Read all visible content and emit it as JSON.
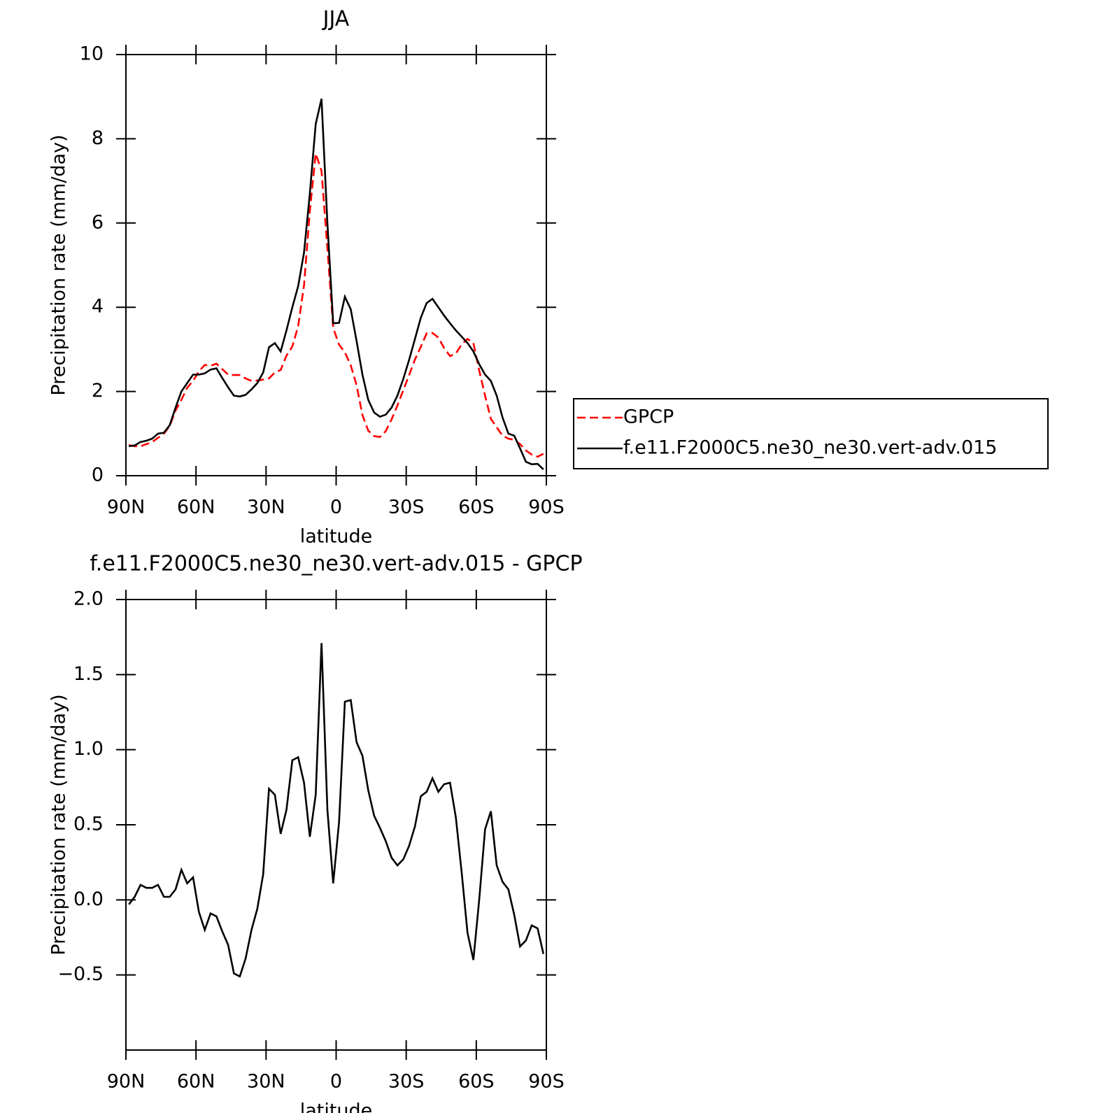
{
  "chart_data": [
    {
      "type": "line",
      "title": "JJA",
      "xlabel": "latitude",
      "ylabel": "Precipitation rate (mm/day)",
      "x": [
        88.75,
        86.25,
        83.75,
        81.25,
        78.75,
        76.25,
        73.75,
        71.25,
        68.75,
        66.25,
        63.75,
        61.25,
        58.75,
        56.25,
        53.75,
        51.25,
        48.75,
        46.25,
        43.75,
        41.25,
        38.75,
        36.25,
        33.75,
        31.25,
        28.75,
        26.25,
        23.75,
        21.25,
        18.75,
        16.25,
        13.75,
        11.25,
        8.75,
        6.25,
        3.75,
        1.25,
        -1.25,
        -3.75,
        -6.25,
        -8.75,
        -11.25,
        -13.75,
        -16.25,
        -18.75,
        -21.25,
        -23.75,
        -26.25,
        -28.75,
        -31.25,
        -33.75,
        -36.25,
        -38.75,
        -41.25,
        -43.75,
        -46.25,
        -48.75,
        -51.25,
        -53.75,
        -56.25,
        -58.75,
        -61.25,
        -63.75,
        -66.25,
        -68.75,
        -71.25,
        -73.75,
        -76.25,
        -78.75,
        -81.25,
        -83.75,
        -86.25,
        -88.75
      ],
      "series": [
        {
          "name": "GPCP",
          "color": "#ff0000",
          "dash": true,
          "values": [
            0.73,
            0.7,
            0.7,
            0.75,
            0.8,
            0.9,
            1.0,
            1.18,
            1.55,
            1.8,
            2.09,
            2.25,
            2.48,
            2.63,
            2.61,
            2.66,
            2.53,
            2.4,
            2.39,
            2.39,
            2.31,
            2.25,
            2.26,
            2.28,
            2.31,
            2.45,
            2.51,
            2.85,
            3.07,
            3.55,
            4.52,
            6.28,
            7.65,
            7.24,
            5.4,
            3.51,
            3.11,
            2.93,
            2.62,
            2.15,
            1.44,
            1.07,
            0.94,
            0.92,
            1.06,
            1.34,
            1.67,
            2.03,
            2.39,
            2.76,
            3.06,
            3.38,
            3.39,
            3.28,
            3.03,
            2.84,
            2.9,
            3.12,
            3.25,
            3.15,
            2.5,
            1.9,
            1.35,
            1.15,
            0.95,
            0.88,
            0.85,
            0.75,
            0.6,
            0.5,
            0.45,
            0.52
          ]
        },
        {
          "name": "f.e11.F2000C5.ne30_ne30.vert-adv.015",
          "color": "#000000",
          "dash": false,
          "values": [
            0.7,
            0.72,
            0.8,
            0.83,
            0.88,
            1.0,
            1.02,
            1.2,
            1.62,
            2.0,
            2.2,
            2.4,
            2.4,
            2.43,
            2.52,
            2.55,
            2.32,
            2.1,
            1.9,
            1.88,
            1.92,
            2.05,
            2.2,
            2.45,
            3.05,
            3.15,
            2.95,
            3.45,
            4.0,
            4.5,
            5.3,
            6.7,
            8.35,
            8.95,
            6.0,
            3.62,
            3.63,
            4.25,
            3.95,
            3.2,
            2.4,
            1.8,
            1.5,
            1.4,
            1.45,
            1.62,
            1.9,
            2.3,
            2.75,
            3.25,
            3.75,
            4.1,
            4.2,
            4.0,
            3.8,
            3.62,
            3.45,
            3.3,
            3.15,
            2.95,
            2.65,
            2.4,
            2.25,
            1.9,
            1.38,
            1.0,
            0.95,
            0.65,
            0.33,
            0.27,
            0.28,
            0.15
          ]
        }
      ],
      "xlim": [
        90,
        -90
      ],
      "xticks": [
        {
          "value": 90,
          "label": "90N"
        },
        {
          "value": 60,
          "label": "60N"
        },
        {
          "value": 30,
          "label": "30N"
        },
        0,
        {
          "value": -30,
          "label": "30S"
        },
        {
          "value": -60,
          "label": "60S"
        },
        {
          "value": -90,
          "label": "90S"
        }
      ],
      "ylim": [
        0,
        10
      ],
      "yticks": [
        0,
        2,
        4,
        6,
        8,
        10
      ],
      "legend": "right"
    },
    {
      "type": "line",
      "title": "f.e11.F2000C5.ne30_ne30.vert-adv.015 - GPCP",
      "xlabel": "latitude",
      "ylabel": "Precipitation rate (mm/day)",
      "x": [
        88.75,
        86.25,
        83.75,
        81.25,
        78.75,
        76.25,
        73.75,
        71.25,
        68.75,
        66.25,
        63.75,
        61.25,
        58.75,
        56.25,
        53.75,
        51.25,
        48.75,
        46.25,
        43.75,
        41.25,
        38.75,
        36.25,
        33.75,
        31.25,
        28.75,
        26.25,
        23.75,
        21.25,
        18.75,
        16.25,
        13.75,
        11.25,
        8.75,
        6.25,
        3.75,
        1.25,
        -1.25,
        -3.75,
        -6.25,
        -8.75,
        -11.25,
        -13.75,
        -16.25,
        -18.75,
        -21.25,
        -23.75,
        -26.25,
        -28.75,
        -31.25,
        -33.75,
        -36.25,
        -38.75,
        -41.25,
        -43.75,
        -46.25,
        -48.75,
        -51.25,
        -53.75,
        -56.25,
        -58.75,
        -61.25,
        -63.75,
        -66.25,
        -68.75,
        -71.25,
        -73.75,
        -76.25,
        -78.75,
        -81.25,
        -83.75,
        -86.25,
        -88.75
      ],
      "values": [
        -0.03,
        0.02,
        0.1,
        0.08,
        0.08,
        0.1,
        0.02,
        0.02,
        0.07,
        0.2,
        0.11,
        0.15,
        -0.08,
        -0.2,
        -0.09,
        -0.11,
        -0.21,
        -0.3,
        -0.49,
        -0.51,
        -0.39,
        -0.2,
        -0.06,
        0.17,
        0.74,
        0.7,
        0.44,
        0.6,
        0.93,
        0.95,
        0.78,
        0.42,
        0.7,
        1.71,
        0.6,
        0.11,
        0.52,
        1.32,
        1.33,
        1.05,
        0.96,
        0.73,
        0.56,
        0.48,
        0.39,
        0.28,
        0.23,
        0.27,
        0.36,
        0.49,
        0.69,
        0.72,
        0.81,
        0.72,
        0.77,
        0.78,
        0.55,
        0.18,
        -0.22,
        -0.4,
        0.0,
        0.47,
        0.59,
        0.23,
        0.12,
        0.07,
        -0.1,
        -0.31,
        -0.27,
        -0.17,
        -0.19,
        -0.36
      ],
      "color": "#000000",
      "xlim": [
        90,
        -90
      ],
      "xticks": [
        {
          "value": 90,
          "label": "90N"
        },
        {
          "value": 60,
          "label": "60N"
        },
        {
          "value": 30,
          "label": "30N"
        },
        0,
        {
          "value": -30,
          "label": "30S"
        },
        {
          "value": -60,
          "label": "60S"
        },
        {
          "value": -90,
          "label": "90S"
        }
      ],
      "ylim": [
        -1,
        2
      ],
      "yticks": [
        {
          "value": 2,
          "label": "2.0"
        },
        {
          "value": 1.5,
          "label": "1.5"
        },
        {
          "value": 1,
          "label": "1.0"
        },
        {
          "value": 0.5,
          "label": "0.5"
        },
        {
          "value": 0,
          "label": "0.0"
        },
        {
          "value": -0.5,
          "label": "−0.5"
        }
      ]
    }
  ]
}
